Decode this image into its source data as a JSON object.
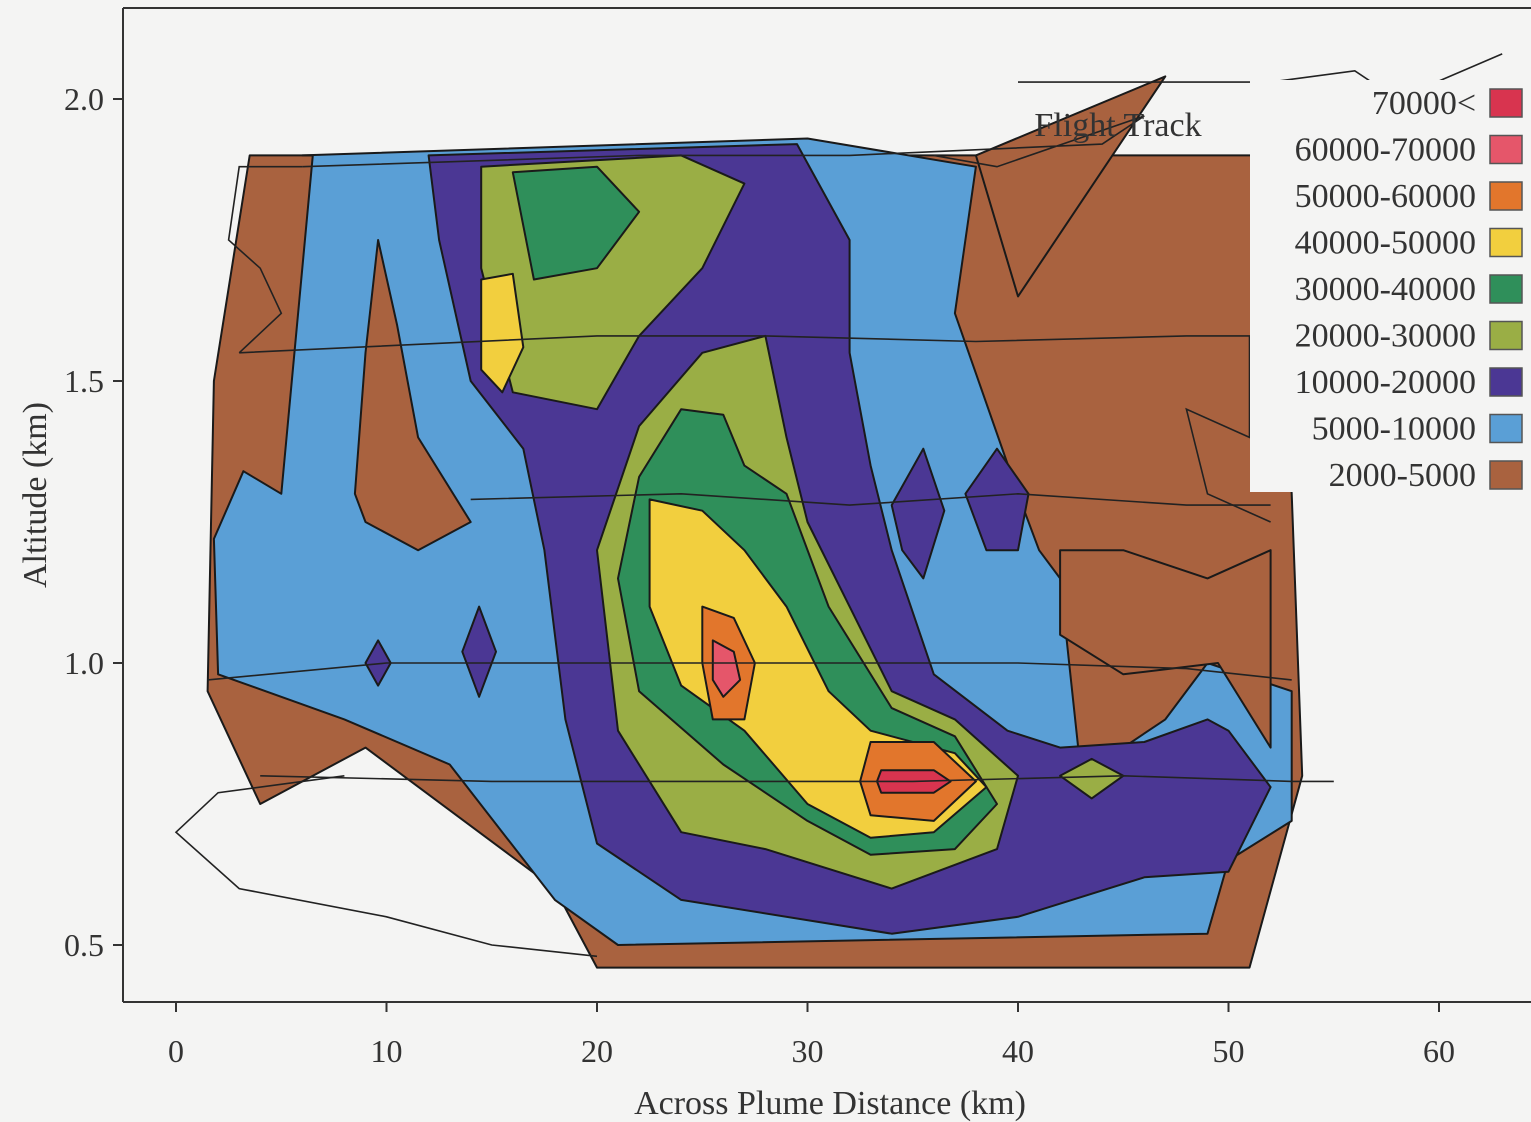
{
  "chart_data": {
    "type": "heatmap",
    "title": "",
    "xlabel": "Across Plume Distance (km)",
    "ylabel": "Altitude (km)",
    "xlim": [
      -2.5,
      65
    ],
    "ylim": [
      0.4,
      2.15
    ],
    "xticks": [
      0,
      10,
      20,
      30,
      40,
      50,
      60
    ],
    "yticks": [
      0.5,
      1.0,
      1.5,
      2.0
    ],
    "grid": false,
    "legend": "top-right",
    "annotation": "Flight Track",
    "flight_track_altitudes_km": [
      0.8,
      1.0,
      1.3,
      1.6,
      1.9
    ],
    "levels": [
      {
        "label": "70000<",
        "color": "#d8344f"
      },
      {
        "label": "60000-70000",
        "color": "#e5566a"
      },
      {
        "label": "50000-60000",
        "color": "#e2762c"
      },
      {
        "label": "40000-50000",
        "color": "#f2cf3e"
      },
      {
        "label": "30000-40000",
        "color": "#2f8f5a"
      },
      {
        "label": "20000-30000",
        "color": "#9aae45"
      },
      {
        "label": "10000-20000",
        "color": "#4b3794"
      },
      {
        "label": "5000-10000",
        "color": "#5a9fd6"
      },
      {
        "label": "2000-5000",
        "color": "#a9623f"
      }
    ],
    "regions": [
      {
        "level": 8,
        "points": [
          [
            3.5,
            1.9
          ],
          [
            52,
            1.9
          ],
          [
            53,
            1.3
          ],
          [
            53.5,
            0.8
          ],
          [
            51,
            0.46
          ],
          [
            20,
            0.46
          ],
          [
            18,
            0.6
          ],
          [
            9,
            0.85
          ],
          [
            4,
            0.75
          ],
          [
            1.5,
            0.95
          ],
          [
            1.8,
            1.5
          ],
          [
            3.5,
            1.9
          ]
        ]
      },
      {
        "level": 8,
        "points": [
          [
            38,
            1.9
          ],
          [
            47,
            2.04
          ],
          [
            40,
            1.65
          ],
          [
            38,
            1.9
          ]
        ]
      },
      {
        "level": 7,
        "points": [
          [
            6,
            1.9
          ],
          [
            30,
            1.93
          ],
          [
            38,
            1.88
          ],
          [
            37,
            1.62
          ],
          [
            40,
            1.3
          ],
          [
            41,
            1.2
          ],
          [
            42,
            1.15
          ],
          [
            43,
            0.8
          ],
          [
            47,
            0.9
          ],
          [
            49,
            1.0
          ],
          [
            53,
            0.95
          ],
          [
            53,
            0.72
          ],
          [
            50,
            0.65
          ],
          [
            49,
            0.52
          ],
          [
            21,
            0.5
          ],
          [
            18,
            0.58
          ],
          [
            13,
            0.82
          ],
          [
            8,
            0.9
          ],
          [
            2,
            0.98
          ],
          [
            1.8,
            1.22
          ],
          [
            3.2,
            1.34
          ],
          [
            5,
            1.3
          ],
          [
            6.5,
            1.9
          ]
        ]
      },
      {
        "level": 6,
        "points": [
          [
            12,
            1.9
          ],
          [
            29.5,
            1.92
          ],
          [
            32,
            1.75
          ],
          [
            32,
            1.55
          ],
          [
            33,
            1.35
          ],
          [
            34,
            1.2
          ],
          [
            36,
            0.98
          ],
          [
            39.5,
            0.88
          ],
          [
            42,
            0.85
          ],
          [
            46,
            0.86
          ],
          [
            49,
            0.9
          ],
          [
            50,
            0.88
          ],
          [
            52,
            0.78
          ],
          [
            50,
            0.63
          ],
          [
            46,
            0.62
          ],
          [
            40,
            0.55
          ],
          [
            34,
            0.52
          ],
          [
            24,
            0.58
          ],
          [
            20,
            0.68
          ],
          [
            18.5,
            0.9
          ],
          [
            17.5,
            1.2
          ],
          [
            16.5,
            1.38
          ],
          [
            14,
            1.5
          ],
          [
            12.5,
            1.75
          ],
          [
            12,
            1.9
          ]
        ]
      },
      {
        "level": 5,
        "points": [
          [
            14.5,
            1.88
          ],
          [
            24,
            1.9
          ],
          [
            27,
            1.85
          ],
          [
            25,
            1.7
          ],
          [
            22,
            1.58
          ],
          [
            20,
            1.45
          ],
          [
            16,
            1.48
          ],
          [
            14.5,
            1.7
          ],
          [
            14.5,
            1.88
          ]
        ]
      },
      {
        "level": 5,
        "points": [
          [
            22,
            1.42
          ],
          [
            25,
            1.55
          ],
          [
            28,
            1.58
          ],
          [
            29,
            1.4
          ],
          [
            30,
            1.25
          ],
          [
            32,
            1.1
          ],
          [
            34,
            0.95
          ],
          [
            37,
            0.9
          ],
          [
            40,
            0.8
          ],
          [
            39,
            0.67
          ],
          [
            34,
            0.6
          ],
          [
            28,
            0.67
          ],
          [
            24,
            0.7
          ],
          [
            21,
            0.88
          ],
          [
            20,
            1.2
          ],
          [
            22,
            1.42
          ]
        ]
      },
      {
        "level": 4,
        "points": [
          [
            16,
            1.87
          ],
          [
            20,
            1.88
          ],
          [
            22,
            1.8
          ],
          [
            20,
            1.7
          ],
          [
            17,
            1.68
          ],
          [
            16,
            1.87
          ]
        ]
      },
      {
        "level": 4,
        "points": [
          [
            22,
            1.33
          ],
          [
            24,
            1.45
          ],
          [
            26,
            1.44
          ],
          [
            27,
            1.35
          ],
          [
            29,
            1.3
          ],
          [
            31,
            1.1
          ],
          [
            34,
            0.92
          ],
          [
            37,
            0.87
          ],
          [
            39,
            0.75
          ],
          [
            37,
            0.67
          ],
          [
            33,
            0.66
          ],
          [
            30,
            0.72
          ],
          [
            26,
            0.82
          ],
          [
            22,
            0.95
          ],
          [
            21,
            1.15
          ],
          [
            22,
            1.33
          ]
        ]
      },
      {
        "level": 3,
        "points": [
          [
            22.5,
            1.29
          ],
          [
            25,
            1.27
          ],
          [
            27,
            1.2
          ],
          [
            29,
            1.1
          ],
          [
            31,
            0.95
          ],
          [
            33,
            0.88
          ],
          [
            37,
            0.84
          ],
          [
            38.5,
            0.78
          ],
          [
            36,
            0.7
          ],
          [
            33,
            0.69
          ],
          [
            30,
            0.75
          ],
          [
            27,
            0.88
          ],
          [
            24,
            0.96
          ],
          [
            22.5,
            1.1
          ],
          [
            22.5,
            1.29
          ]
        ]
      },
      {
        "level": 3,
        "points": [
          [
            14.5,
            1.68
          ],
          [
            16,
            1.69
          ],
          [
            16.5,
            1.56
          ],
          [
            15.5,
            1.48
          ],
          [
            14.5,
            1.52
          ],
          [
            14.5,
            1.68
          ]
        ]
      },
      {
        "level": 2,
        "points": [
          [
            25,
            1.1
          ],
          [
            26.5,
            1.08
          ],
          [
            27.5,
            1.0
          ],
          [
            27,
            0.9
          ],
          [
            25.5,
            0.9
          ],
          [
            25,
            1.0
          ],
          [
            25,
            1.1
          ]
        ]
      },
      {
        "level": 2,
        "points": [
          [
            33,
            0.86
          ],
          [
            36,
            0.86
          ],
          [
            38,
            0.79
          ],
          [
            36,
            0.72
          ],
          [
            33,
            0.73
          ],
          [
            32.5,
            0.79
          ],
          [
            33,
            0.86
          ]
        ]
      },
      {
        "level": 1,
        "points": [
          [
            25.5,
            1.04
          ],
          [
            26.5,
            1.02
          ],
          [
            26.8,
            0.97
          ],
          [
            26,
            0.94
          ],
          [
            25.5,
            0.97
          ],
          [
            25.5,
            1.04
          ]
        ]
      },
      {
        "level": 0,
        "points": [
          [
            33.5,
            0.81
          ],
          [
            36,
            0.81
          ],
          [
            36.8,
            0.79
          ],
          [
            36,
            0.77
          ],
          [
            33.5,
            0.77
          ],
          [
            33.3,
            0.79
          ],
          [
            33.5,
            0.81
          ]
        ]
      },
      {
        "level": 6,
        "points": [
          [
            34,
            1.28
          ],
          [
            35.5,
            1.38
          ],
          [
            36.5,
            1.27
          ],
          [
            35.5,
            1.15
          ],
          [
            34.5,
            1.2
          ],
          [
            34,
            1.28
          ]
        ]
      },
      {
        "level": 6,
        "points": [
          [
            37.5,
            1.3
          ],
          [
            39,
            1.38
          ],
          [
            40.5,
            1.3
          ],
          [
            40,
            1.2
          ],
          [
            38.5,
            1.2
          ],
          [
            37.5,
            1.3
          ]
        ]
      },
      {
        "level": 5,
        "points": [
          [
            42,
            0.8
          ],
          [
            43.5,
            0.83
          ],
          [
            45,
            0.8
          ],
          [
            43.5,
            0.76
          ],
          [
            42,
            0.8
          ]
        ]
      },
      {
        "level": 6,
        "points": [
          [
            9,
            1.0
          ],
          [
            9.6,
            1.04
          ],
          [
            10.2,
            1.0
          ],
          [
            9.6,
            0.96
          ],
          [
            9,
            1.0
          ]
        ]
      },
      {
        "level": 6,
        "points": [
          [
            13.6,
            1.02
          ],
          [
            14.4,
            1.1
          ],
          [
            15.2,
            1.02
          ],
          [
            14.4,
            0.94
          ],
          [
            13.6,
            1.02
          ]
        ]
      },
      {
        "level": 8,
        "points": [
          [
            8.5,
            1.3
          ],
          [
            9,
            1.55
          ],
          [
            9.6,
            1.75
          ],
          [
            10.5,
            1.6
          ],
          [
            11.5,
            1.4
          ],
          [
            14,
            1.25
          ],
          [
            11.5,
            1.2
          ],
          [
            9,
            1.25
          ],
          [
            8.5,
            1.3
          ]
        ]
      },
      {
        "level": 8,
        "points": [
          [
            42,
            1.05
          ],
          [
            42,
            1.2
          ],
          [
            45,
            1.2
          ],
          [
            49,
            1.15
          ],
          [
            52,
            1.2
          ],
          [
            52,
            0.85
          ],
          [
            49.5,
            1.0
          ],
          [
            45,
            0.98
          ],
          [
            42,
            1.05
          ]
        ]
      }
    ],
    "track": [
      {
        "points": [
          [
            3,
            1.55
          ],
          [
            20,
            1.58
          ],
          [
            28,
            1.58
          ],
          [
            38,
            1.57
          ],
          [
            48,
            1.58
          ],
          [
            51,
            1.58
          ],
          [
            51,
            1.4
          ],
          [
            48,
            1.45
          ],
          [
            49,
            1.3
          ],
          [
            52,
            1.25
          ]
        ]
      },
      {
        "points": [
          [
            6,
            1.88
          ],
          [
            22,
            1.9
          ],
          [
            32,
            1.9
          ],
          [
            44,
            1.92
          ],
          [
            46,
            1.97
          ],
          [
            39,
            1.88
          ],
          [
            36,
            1.9
          ]
        ]
      },
      {
        "points": [
          [
            40,
            2.03
          ],
          [
            52,
            2.03
          ],
          [
            56,
            2.05
          ],
          [
            58,
            2.0
          ],
          [
            63,
            2.08
          ]
        ]
      },
      {
        "points": [
          [
            6,
            1.88
          ],
          [
            3,
            1.88
          ],
          [
            2.5,
            1.75
          ],
          [
            4,
            1.7
          ],
          [
            5,
            1.62
          ],
          [
            3,
            1.55
          ]
        ]
      },
      {
        "points": [
          [
            14,
            1.29
          ],
          [
            24,
            1.3
          ],
          [
            32,
            1.28
          ],
          [
            40,
            1.3
          ],
          [
            48,
            1.28
          ],
          [
            52,
            1.28
          ]
        ]
      },
      {
        "points": [
          [
            1.5,
            0.97
          ],
          [
            10,
            1.0
          ],
          [
            20,
            1.0
          ],
          [
            30,
            1.0
          ],
          [
            40,
            1.0
          ],
          [
            48,
            0.99
          ],
          [
            53,
            0.97
          ]
        ]
      },
      {
        "points": [
          [
            4,
            0.8
          ],
          [
            15,
            0.79
          ],
          [
            25,
            0.79
          ],
          [
            35,
            0.79
          ],
          [
            45,
            0.8
          ],
          [
            53,
            0.79
          ],
          [
            55,
            0.79
          ]
        ]
      },
      {
        "points": [
          [
            8,
            0.8
          ],
          [
            2,
            0.77
          ],
          [
            0,
            0.7
          ],
          [
            3,
            0.6
          ],
          [
            10,
            0.55
          ],
          [
            15,
            0.5
          ],
          [
            20,
            0.48
          ]
        ]
      }
    ]
  }
}
